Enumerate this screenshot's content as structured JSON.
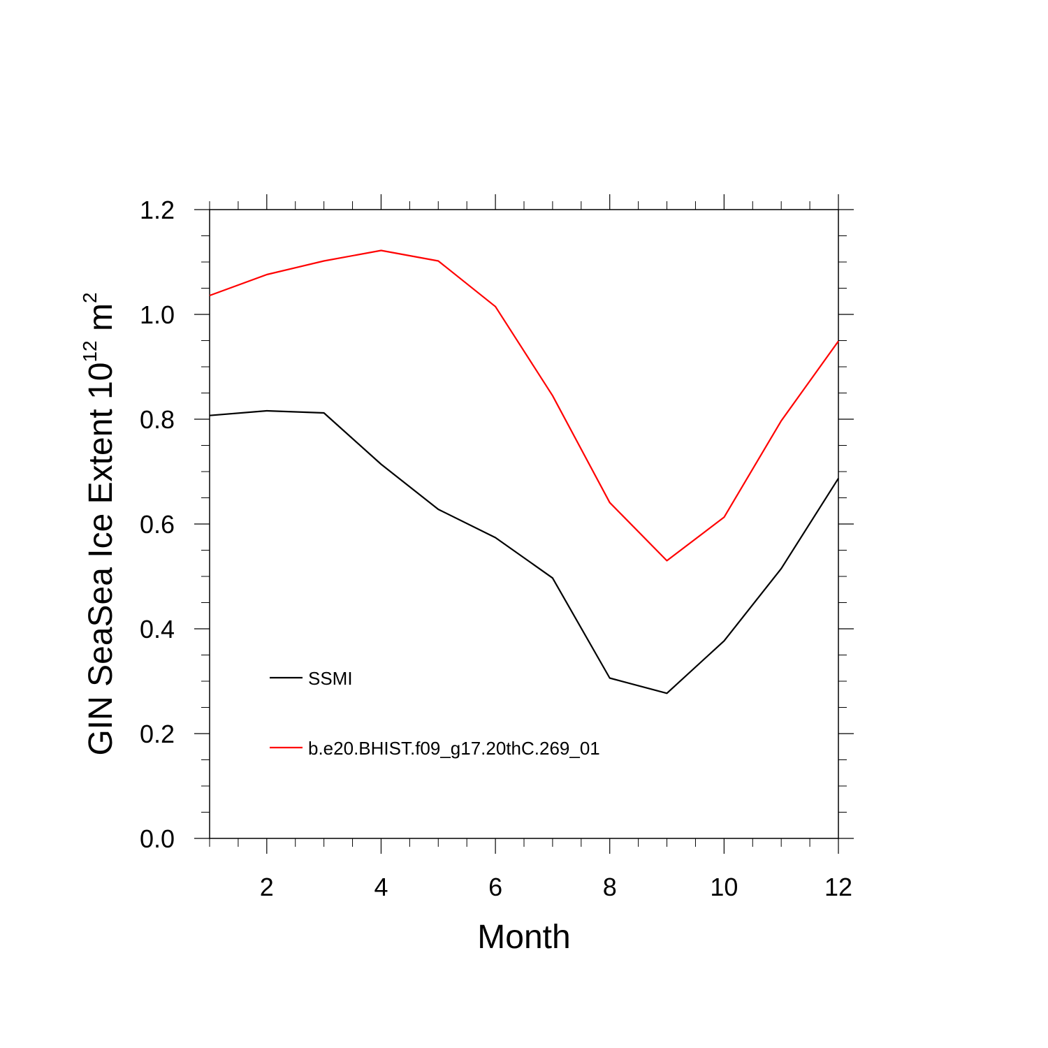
{
  "chart_data": {
    "type": "line",
    "xlabel": "Month",
    "ylabel": {
      "prefix": "GIN SeaSea Ice Extent 10",
      "exponent": "12",
      "unit": " m",
      "unit_exponent": "2"
    },
    "xlim": [
      1,
      12
    ],
    "ylim": [
      0.0,
      1.2
    ],
    "x_ticks": [
      2,
      4,
      6,
      8,
      10,
      12
    ],
    "x_tick_labels": [
      "2",
      "4",
      "6",
      "8",
      "10",
      "12"
    ],
    "y_ticks": [
      0.0,
      0.2,
      0.4,
      0.6,
      0.8,
      1.0,
      1.2
    ],
    "y_tick_labels": [
      "0.0",
      "0.2",
      "0.4",
      "0.6",
      "0.8",
      "1.0",
      "1.2"
    ],
    "grid": false,
    "legend_position": "lower-left",
    "x": [
      1,
      2,
      3,
      4,
      5,
      6,
      7,
      8,
      9,
      10,
      11,
      12
    ],
    "series": [
      {
        "name": "SSMI",
        "color": "#000000",
        "values": [
          0.807,
          0.816,
          0.812,
          0.714,
          0.628,
          0.574,
          0.497,
          0.306,
          0.277,
          0.377,
          0.515,
          0.687
        ]
      },
      {
        "name": "b.e20.BHIST.f09_g17.20thC.269_01",
        "color": "#ff0000",
        "values": [
          1.036,
          1.076,
          1.102,
          1.122,
          1.102,
          1.015,
          0.845,
          0.641,
          0.53,
          0.613,
          0.797,
          0.949
        ]
      }
    ]
  }
}
